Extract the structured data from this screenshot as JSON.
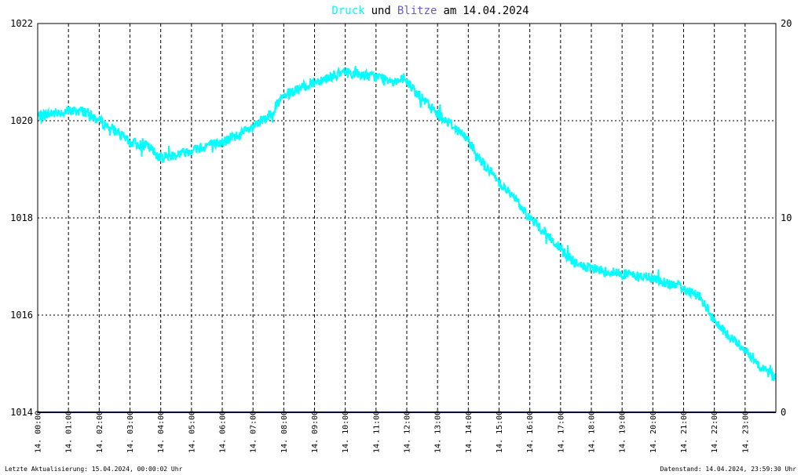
{
  "title": {
    "word_druck": "Druck",
    "word_und": "und",
    "word_blitze": "Blitze",
    "word_am": "am",
    "date": "14.04.2024"
  },
  "colors": {
    "pressure": "#00ffff",
    "lightning": "#6a5acd",
    "zero_line": "#000080",
    "background": "#ffffff",
    "grid": "#000000"
  },
  "footer": {
    "left": "Letzte Aktualisierung: 15.04.2024, 00:00:02 Uhr",
    "right": "Datenstand: 14.04.2024, 23:59:30 Uhr"
  },
  "chart_data": {
    "type": "line",
    "title": "Druck und Blitze am 14.04.2024",
    "x_ticks": [
      "14. 00:00",
      "14. 01:00",
      "14. 02:00",
      "14. 03:00",
      "14. 04:00",
      "14. 05:00",
      "14. 06:00",
      "14. 07:00",
      "14. 08:00",
      "14. 09:00",
      "14. 10:00",
      "14. 11:00",
      "14. 12:00",
      "14. 13:00",
      "14. 14:00",
      "14. 15:00",
      "14. 16:00",
      "14. 17:00",
      "14. 18:00",
      "14. 19:00",
      "14. 20:00",
      "14. 21:00",
      "14. 22:00",
      "14. 23:00"
    ],
    "x_range_hours": [
      0,
      24
    ],
    "y_left": {
      "range": [
        1014,
        1022
      ],
      "ticks": [
        "1014",
        "1016",
        "1018",
        "1020",
        "1022"
      ]
    },
    "y_right": {
      "range": [
        0,
        20
      ],
      "ticks": [
        "0",
        "10",
        "20"
      ]
    },
    "grid": true,
    "series": [
      {
        "name": "Druck",
        "axis": "left",
        "x_hours": [
          0,
          0.5,
          1.0,
          1.5,
          2.0,
          2.5,
          3.0,
          3.5,
          4.0,
          4.5,
          5.0,
          5.5,
          6.0,
          6.5,
          7.0,
          7.5,
          8.0,
          8.5,
          9.0,
          9.5,
          10.0,
          10.5,
          11.0,
          11.5,
          12.0,
          12.5,
          13.0,
          13.5,
          14.0,
          14.5,
          15.0,
          15.5,
          16.0,
          16.5,
          17.0,
          17.5,
          18.0,
          18.5,
          19.0,
          19.5,
          20.0,
          20.5,
          21.0,
          21.5,
          22.0,
          22.5,
          23.0,
          23.5,
          24.0
        ],
        "values": [
          1020.1,
          1020.15,
          1020.2,
          1020.2,
          1020.0,
          1019.8,
          1019.55,
          1019.5,
          1019.25,
          1019.3,
          1019.4,
          1019.5,
          1019.55,
          1019.7,
          1019.85,
          1020.1,
          1020.5,
          1020.65,
          1020.8,
          1020.9,
          1021.0,
          1020.95,
          1020.9,
          1020.85,
          1020.8,
          1020.45,
          1020.15,
          1019.9,
          1019.6,
          1019.1,
          1018.75,
          1018.4,
          1018.0,
          1017.7,
          1017.35,
          1017.05,
          1016.95,
          1016.9,
          1016.85,
          1016.8,
          1016.75,
          1016.65,
          1016.55,
          1016.4,
          1015.85,
          1015.55,
          1015.3,
          1014.95,
          1014.7
        ]
      },
      {
        "name": "Blitze",
        "axis": "right",
        "x_hours": [
          0,
          24
        ],
        "values": [
          0,
          0
        ]
      }
    ]
  }
}
